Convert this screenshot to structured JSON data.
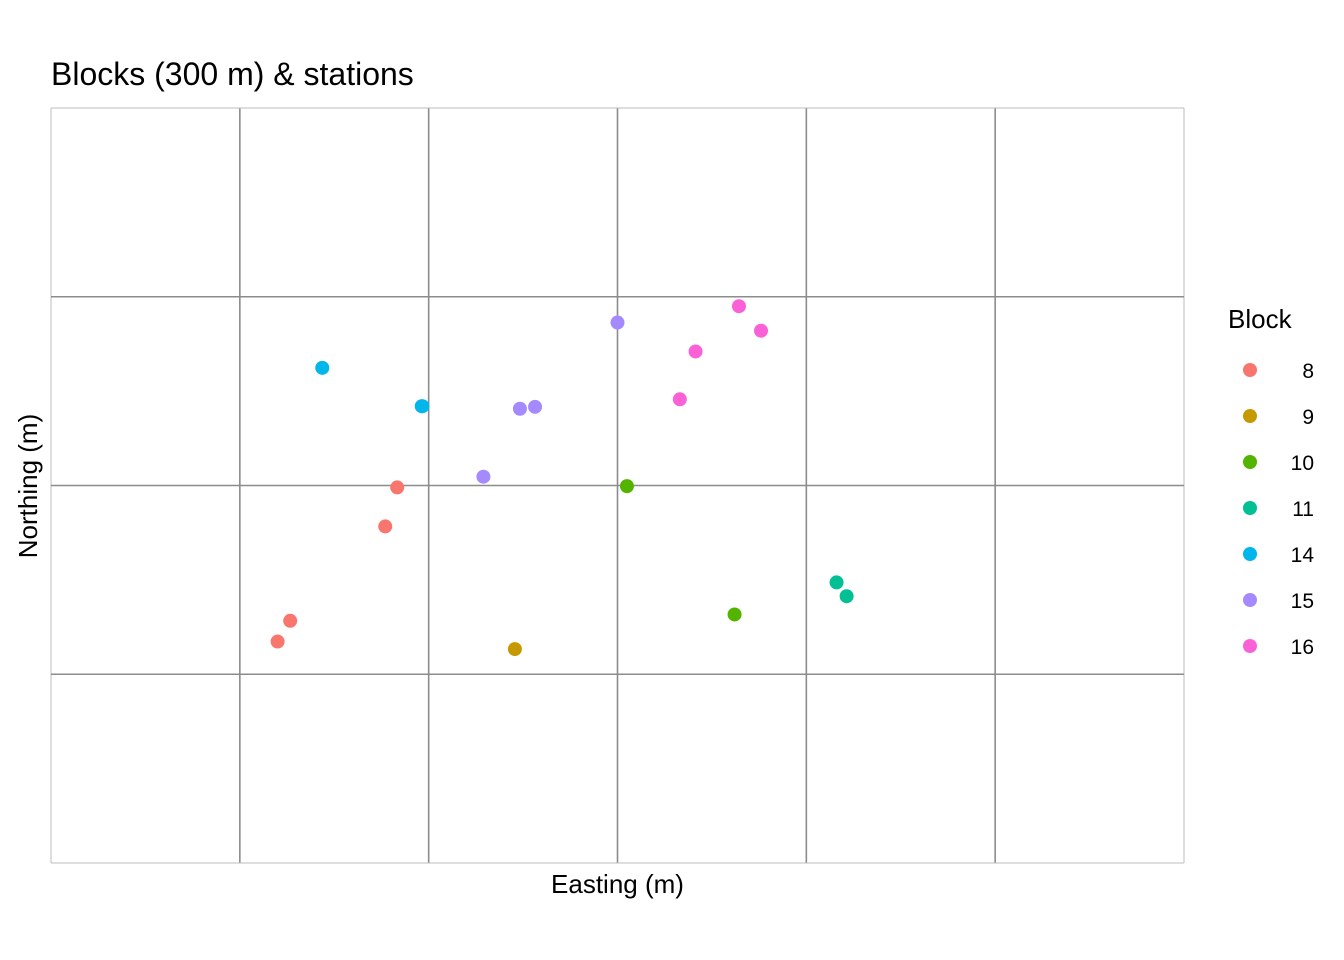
{
  "chart_data": {
    "type": "scatter",
    "title": "Blocks (300 m) & stations",
    "xlabel": "Easting (m)",
    "ylabel": "Northing (m)",
    "xlim": [
      0,
      1800
    ],
    "ylim": [
      0,
      1200
    ],
    "grid": {
      "cell_size": 300,
      "on": true
    },
    "tick_labels_shown": false,
    "legend": {
      "title": "Block",
      "placement": "right"
    },
    "series": [
      {
        "name": "8",
        "color": "#F8766D",
        "points": [
          [
            360,
            352
          ],
          [
            380,
            385
          ],
          [
            531,
            535
          ],
          [
            550,
            597
          ]
        ]
      },
      {
        "name": "9",
        "color": "#C49A00",
        "points": [
          [
            737,
            340
          ]
        ]
      },
      {
        "name": "10",
        "color": "#53B400",
        "points": [
          [
            1086,
            395
          ],
          [
            915,
            599
          ]
        ]
      },
      {
        "name": "11",
        "color": "#00C094",
        "points": [
          [
            1248,
            446
          ],
          [
            1264,
            424
          ]
        ]
      },
      {
        "name": "14",
        "color": "#00B6EB",
        "points": [
          [
            431,
            787
          ],
          [
            589,
            726
          ],
          [
            590,
            726
          ]
        ]
      },
      {
        "name": "15",
        "color": "#A58AFF",
        "points": [
          [
            687,
            614
          ],
          [
            745,
            722
          ],
          [
            769,
            725
          ],
          [
            900,
            859
          ]
        ]
      },
      {
        "name": "16",
        "color": "#FB61D7",
        "points": [
          [
            1093,
            885
          ],
          [
            1128,
            846
          ],
          [
            1024,
            813
          ],
          [
            999,
            737
          ]
        ]
      }
    ]
  }
}
